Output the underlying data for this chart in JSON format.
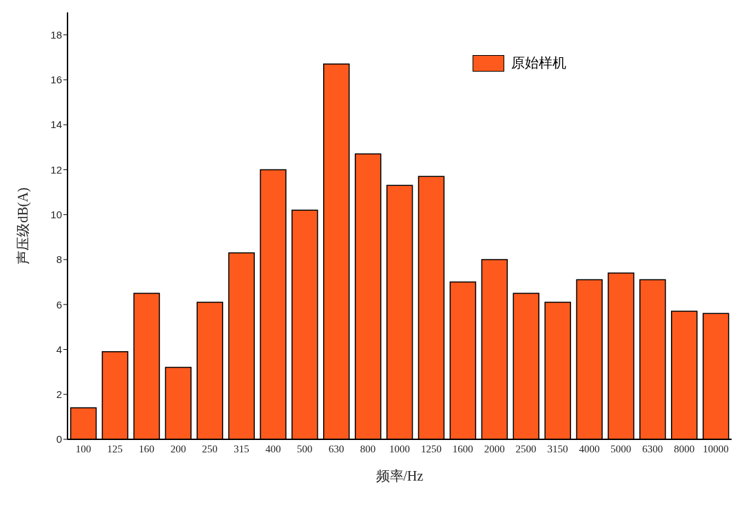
{
  "chart_data": {
    "type": "bar",
    "xlabel": "频率/Hz",
    "ylabel": "声压级dB(A)",
    "categories": [
      "100",
      "125",
      "160",
      "200",
      "250",
      "315",
      "400",
      "500",
      "630",
      "800",
      "1000",
      "1250",
      "1600",
      "2000",
      "2500",
      "3150",
      "4000",
      "5000",
      "6300",
      "8000",
      "10000"
    ],
    "series": [
      {
        "name": "原始样机",
        "color": "#ff5a1e",
        "values": [
          1.4,
          3.9,
          6.5,
          3.2,
          6.1,
          8.3,
          12.0,
          10.2,
          16.7,
          12.7,
          11.3,
          11.7,
          7.0,
          8.0,
          6.5,
          6.1,
          7.1,
          7.4,
          7.1,
          5.7,
          5.6
        ]
      }
    ],
    "ylim": [
      0,
      19
    ],
    "yticks": [
      0,
      2,
      4,
      6,
      8,
      10,
      12,
      14,
      16,
      18
    ],
    "grid": false,
    "legend": "top right"
  }
}
